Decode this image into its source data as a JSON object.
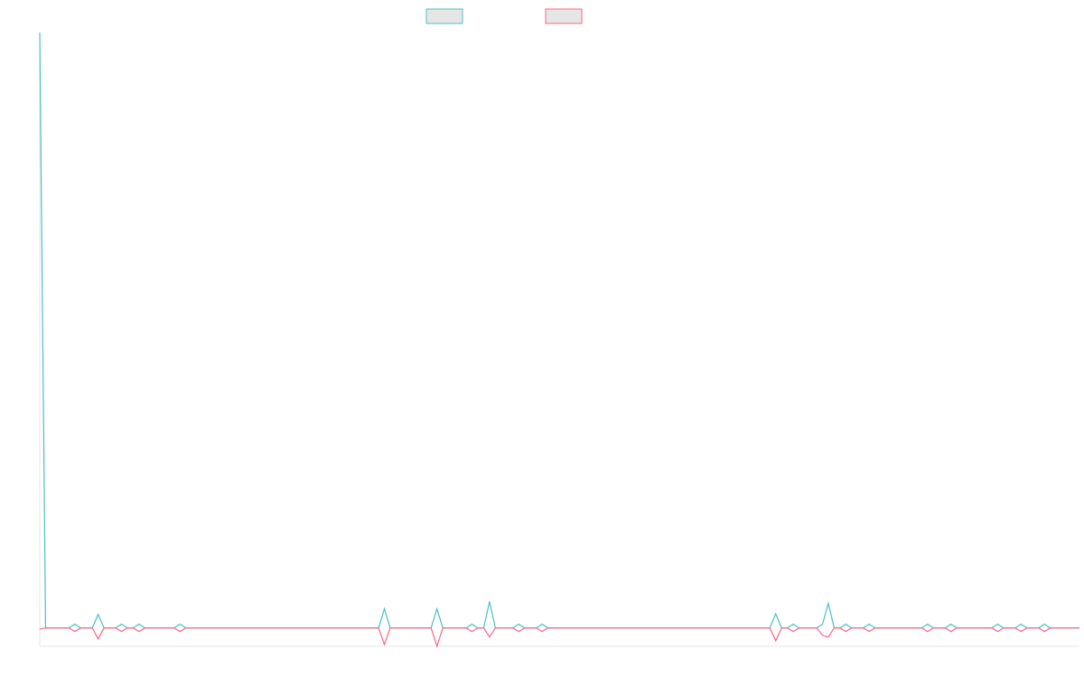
{
  "chart_data": {
    "type": "line",
    "legend_position": "top",
    "x": [
      0,
      1,
      5,
      6,
      7,
      9,
      10,
      11,
      13,
      14,
      15,
      16,
      17,
      18,
      23,
      24,
      25,
      58,
      59,
      60,
      67,
      68,
      69,
      73,
      74,
      75,
      76,
      77,
      78,
      81,
      82,
      83,
      85,
      86,
      87,
      125,
      126,
      127,
      128,
      129,
      130,
      133,
      134,
      135,
      136,
      137,
      138,
      139,
      141,
      142,
      143,
      151,
      152,
      153,
      155,
      156,
      157,
      163,
      164,
      165,
      167,
      168,
      169,
      171,
      172,
      173,
      178
    ],
    "series": [
      {
        "color": "#4bc0c0",
        "values": [
          97,
          0,
          0,
          0.6,
          0,
          0,
          2.2,
          0,
          0,
          0.6,
          0,
          0,
          0.6,
          0,
          0,
          0.6,
          0,
          0,
          3.1,
          0,
          0,
          3.1,
          0,
          0,
          0.6,
          0,
          0,
          4.3,
          0,
          0,
          0.6,
          0,
          0,
          0.6,
          0,
          0,
          2.3,
          0,
          0,
          0.6,
          0,
          0,
          0.6,
          4,
          0,
          0,
          0.6,
          0,
          0,
          0.6,
          0,
          0,
          0.6,
          0,
          0,
          0.6,
          0,
          0,
          0.6,
          0,
          0,
          0.6,
          0,
          0,
          0.6,
          0,
          0
        ]
      },
      {
        "color": "#ff6384",
        "values": [
          -0.2,
          0,
          0,
          -0.6,
          0,
          0,
          -1.8,
          0,
          0,
          -0.6,
          0,
          0,
          -0.6,
          0,
          0,
          -0.6,
          0,
          0,
          -2.7,
          0,
          0,
          -3,
          0,
          0,
          -0.6,
          0,
          0,
          -1.5,
          0,
          0,
          -0.6,
          0,
          0,
          -0.6,
          0,
          0,
          -2.1,
          0,
          0,
          -0.6,
          0,
          0,
          -1.2,
          -1.5,
          0,
          0,
          -0.6,
          0,
          0,
          -0.6,
          0,
          0,
          -0.6,
          0,
          0,
          -0.6,
          0,
          0,
          -0.6,
          0,
          0,
          -0.6,
          0,
          0,
          -0.6,
          0,
          0
        ]
      }
    ],
    "xlim": [
      0,
      178
    ],
    "ylim": [
      -3,
      97
    ]
  }
}
